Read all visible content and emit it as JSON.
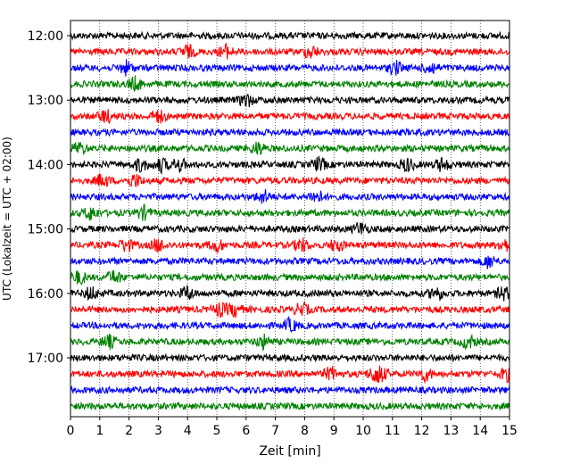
{
  "chart_data": {
    "type": "line",
    "title": "",
    "xlabel": "Zeit  [min]",
    "ylabel": "UTC (Lokalzeit = UTC + 02:00)",
    "xlim": [
      0,
      15
    ],
    "x_ticks": [
      "0",
      "1",
      "2",
      "3",
      "4",
      "5",
      "6",
      "7",
      "8",
      "9",
      "10",
      "11",
      "12",
      "13",
      "14",
      "15"
    ],
    "y_tick_labels": [
      "12:00",
      "13:00",
      "14:00",
      "15:00",
      "16:00",
      "17:00"
    ],
    "y_tick_rows": [
      0,
      4,
      8,
      12,
      16,
      20
    ],
    "grid": "vertical dotted",
    "row_minutes": 15,
    "series": [
      {
        "time": "12:00",
        "color": "#000000",
        "events": []
      },
      {
        "time": "12:15",
        "color": "#ff0000",
        "events": [
          4.0,
          5.3,
          8.2
        ]
      },
      {
        "time": "12:30",
        "color": "#0000ff",
        "events": [
          1.9,
          11.1,
          12.3
        ]
      },
      {
        "time": "12:45",
        "color": "#008000",
        "events": [
          2.2
        ]
      },
      {
        "time": "13:00",
        "color": "#000000",
        "events": [
          6.0
        ]
      },
      {
        "time": "13:15",
        "color": "#ff0000",
        "events": [
          3.0,
          1.2
        ]
      },
      {
        "time": "13:30",
        "color": "#0000ff",
        "events": []
      },
      {
        "time": "13:45",
        "color": "#008000",
        "events": [
          0.3,
          6.4
        ]
      },
      {
        "time": "14:00",
        "color": "#000000",
        "events": [
          2.4,
          3.1,
          3.7,
          8.5,
          11.5,
          12.7
        ]
      },
      {
        "time": "14:15",
        "color": "#ff0000",
        "events": [
          2.2,
          1.1
        ]
      },
      {
        "time": "14:30",
        "color": "#0000ff",
        "events": [
          6.6,
          8.4
        ]
      },
      {
        "time": "14:45",
        "color": "#008000",
        "events": [
          0.7,
          2.5
        ]
      },
      {
        "time": "15:00",
        "color": "#000000",
        "events": [
          9.9
        ]
      },
      {
        "time": "15:15",
        "color": "#ff0000",
        "events": [
          1.9,
          3.0,
          5.0,
          7.9,
          9.1,
          14.8
        ]
      },
      {
        "time": "15:30",
        "color": "#0000ff",
        "events": [
          14.3
        ]
      },
      {
        "time": "15:45",
        "color": "#008000",
        "events": [
          0.3,
          1.5
        ]
      },
      {
        "time": "16:00",
        "color": "#000000",
        "events": [
          0.7,
          4.0,
          12.5,
          14.8
        ]
      },
      {
        "time": "16:15",
        "color": "#ff0000",
        "events": [
          5.1,
          5.6,
          7.9
        ]
      },
      {
        "time": "16:30",
        "color": "#0000ff",
        "events": [
          7.5
        ]
      },
      {
        "time": "16:45",
        "color": "#008000",
        "events": [
          1.3,
          6.6,
          13.6
        ]
      },
      {
        "time": "17:00",
        "color": "#000000",
        "events": []
      },
      {
        "time": "17:15",
        "color": "#ff0000",
        "events": [
          8.9,
          10.4,
          10.6,
          12.1,
          14.9
        ]
      },
      {
        "time": "17:30",
        "color": "#0000ff",
        "events": []
      },
      {
        "time": "17:45",
        "color": "#008000",
        "events": []
      }
    ]
  }
}
